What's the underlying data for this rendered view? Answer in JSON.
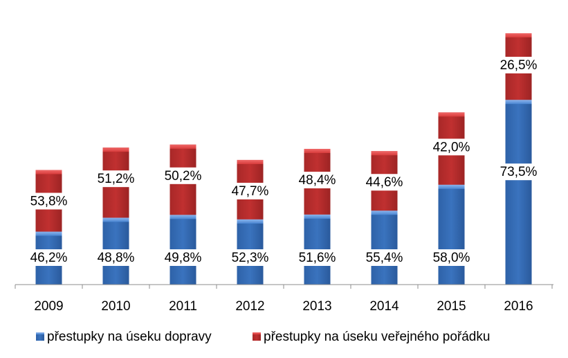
{
  "chart_data": {
    "type": "bar",
    "stacked": true,
    "normalized": true,
    "categories": [
      "2009",
      "2010",
      "2011",
      "2012",
      "2013",
      "2014",
      "2015",
      "2016"
    ],
    "series": [
      {
        "name": "přestupky na úseku dopravy",
        "values": [
          46.2,
          48.8,
          49.8,
          52.3,
          51.6,
          55.4,
          58.0,
          73.5
        ],
        "labels": [
          "46,2%",
          "48,8%",
          "49,8%",
          "52,3%",
          "51,6%",
          "55,4%",
          "58,0%",
          "73,5%"
        ],
        "color": "#3c78c8"
      },
      {
        "name": "přestupky na úseku veřejného pořádku",
        "values": [
          53.8,
          51.2,
          50.2,
          47.7,
          48.4,
          44.6,
          42.0,
          26.5
        ],
        "labels": [
          "53,8%",
          "51,2%",
          "50,2%",
          "47,7%",
          "48,4%",
          "44,6%",
          "42,0%",
          "26,5%"
        ],
        "color": "#c83232"
      }
    ],
    "totals_relative": [
      0.456,
      0.545,
      0.557,
      0.496,
      0.54,
      0.531,
      0.685,
      1.0
    ],
    "grid": false,
    "legend": "bottom"
  }
}
